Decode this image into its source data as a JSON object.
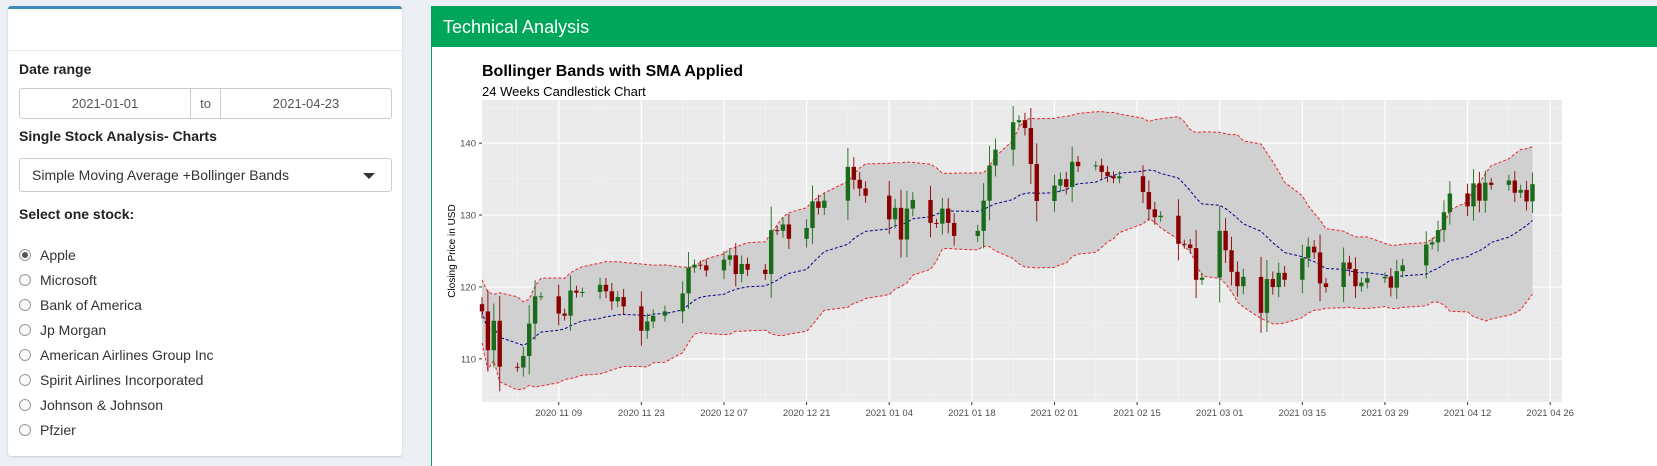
{
  "sidebar": {
    "date_range": {
      "label": "Date range",
      "start": "2021-01-01",
      "sep": "to",
      "end": "2021-04-23"
    },
    "chart_select": {
      "label": "Single Stock Analysis- Charts",
      "value": "Simple Moving Average +Bollinger Bands"
    },
    "stock_select": {
      "label": "Select one stock:",
      "options": [
        "Apple",
        "Microsoft",
        "Bank of America",
        "Jp Morgan",
        "American Airlines Group Inc",
        "Spirit Airlines Incorporated",
        "Johnson & Johnson",
        "Pfzier"
      ],
      "selected": "Apple"
    }
  },
  "main": {
    "header": "Technical Analysis"
  },
  "colors": {
    "accent": "#00a65a",
    "panel_top": "#3c8dbc",
    "up": "#1a6b1a",
    "down": "#8b0000",
    "band": "#e8262b",
    "sma": "#00008b"
  },
  "chart_data": {
    "type": "candlestick",
    "title": "Bollinger Bands with SMA Applied",
    "subtitle": "24 Weeks Candlestick Chart",
    "ylabel": "Closing Price in USD",
    "xlabel": "",
    "ylim": [
      104,
      146
    ],
    "yticks": [
      110,
      120,
      130,
      140
    ],
    "x_range": [
      "2020-10-27",
      "2021-04-28"
    ],
    "xticks": [
      "2020 11 09",
      "2020 11 23",
      "2020 12 07",
      "2020 12 21",
      "2021 01 04",
      "2021 01 18",
      "2021 02 01",
      "2021 02 15",
      "2021 03 01",
      "2021 03 15",
      "2021 03 29",
      "2021 04 12",
      "2021 04 26"
    ],
    "closes": [
      [
        "2020-10-27",
        116.6
      ],
      [
        "2020-10-28",
        111.2
      ],
      [
        "2020-10-29",
        115.3
      ],
      [
        "2020-10-30",
        108.9
      ],
      [
        "2020-11-02",
        108.8
      ],
      [
        "2020-11-03",
        110.4
      ],
      [
        "2020-11-04",
        114.9
      ],
      [
        "2020-11-05",
        118.7
      ],
      [
        "2020-11-06",
        118.7
      ],
      [
        "2020-11-09",
        116.3
      ],
      [
        "2020-11-10",
        116.0
      ],
      [
        "2020-11-11",
        119.5
      ],
      [
        "2020-11-12",
        119.2
      ],
      [
        "2020-11-13",
        119.3
      ],
      [
        "2020-11-16",
        120.3
      ],
      [
        "2020-11-17",
        119.4
      ],
      [
        "2020-11-18",
        118.0
      ],
      [
        "2020-11-19",
        118.6
      ],
      [
        "2020-11-20",
        117.3
      ],
      [
        "2020-11-23",
        113.9
      ],
      [
        "2020-11-24",
        115.2
      ],
      [
        "2020-11-25",
        116.0
      ],
      [
        "2020-11-27",
        116.6
      ],
      [
        "2020-11-30",
        119.1
      ],
      [
        "2020-12-01",
        122.7
      ],
      [
        "2020-12-02",
        123.1
      ],
      [
        "2020-12-03",
        123.0
      ],
      [
        "2020-12-04",
        122.3
      ],
      [
        "2020-12-07",
        123.8
      ],
      [
        "2020-12-08",
        124.4
      ],
      [
        "2020-12-09",
        121.8
      ],
      [
        "2020-12-10",
        123.2
      ],
      [
        "2020-12-11",
        122.4
      ],
      [
        "2020-12-14",
        121.8
      ],
      [
        "2020-12-15",
        127.9
      ],
      [
        "2020-12-16",
        127.8
      ],
      [
        "2020-12-17",
        128.7
      ],
      [
        "2020-12-18",
        126.7
      ],
      [
        "2020-12-21",
        128.2
      ],
      [
        "2020-12-22",
        131.9
      ],
      [
        "2020-12-23",
        131.0
      ],
      [
        "2020-12-24",
        132.0
      ],
      [
        "2020-12-28",
        136.7
      ],
      [
        "2020-12-29",
        134.9
      ],
      [
        "2020-12-30",
        133.7
      ],
      [
        "2020-12-31",
        132.7
      ],
      [
        "2021-01-04",
        129.4
      ],
      [
        "2021-01-05",
        131.0
      ],
      [
        "2021-01-06",
        126.6
      ],
      [
        "2021-01-07",
        130.9
      ],
      [
        "2021-01-08",
        132.1
      ],
      [
        "2021-01-11",
        128.9
      ],
      [
        "2021-01-12",
        128.8
      ],
      [
        "2021-01-13",
        130.9
      ],
      [
        "2021-01-14",
        128.9
      ],
      [
        "2021-01-15",
        127.1
      ],
      [
        "2021-01-19",
        127.8
      ],
      [
        "2021-01-20",
        132.0
      ],
      [
        "2021-01-21",
        136.9
      ],
      [
        "2021-01-22",
        139.1
      ],
      [
        "2021-01-25",
        142.9
      ],
      [
        "2021-01-26",
        143.2
      ],
      [
        "2021-01-27",
        142.1
      ],
      [
        "2021-01-28",
        137.1
      ],
      [
        "2021-01-29",
        131.96
      ],
      [
        "2021-02-01",
        134.1
      ],
      [
        "2021-02-02",
        134.99
      ],
      [
        "2021-02-03",
        133.9
      ],
      [
        "2021-02-04",
        137.4
      ],
      [
        "2021-02-05",
        136.8
      ],
      [
        "2021-02-08",
        136.9
      ],
      [
        "2021-02-09",
        136.0
      ],
      [
        "2021-02-10",
        135.4
      ],
      [
        "2021-02-11",
        135.1
      ],
      [
        "2021-02-12",
        135.4
      ],
      [
        "2021-02-16",
        133.2
      ],
      [
        "2021-02-17",
        130.8
      ],
      [
        "2021-02-18",
        129.7
      ],
      [
        "2021-02-19",
        129.9
      ],
      [
        "2021-02-22",
        126.0
      ],
      [
        "2021-02-23",
        125.9
      ],
      [
        "2021-02-24",
        125.4
      ],
      [
        "2021-02-25",
        120.99
      ],
      [
        "2021-02-26",
        121.3
      ],
      [
        "2021-03-01",
        127.8
      ],
      [
        "2021-03-02",
        125.1
      ],
      [
        "2021-03-03",
        122.1
      ],
      [
        "2021-03-04",
        120.1
      ],
      [
        "2021-03-05",
        121.4
      ],
      [
        "2021-03-08",
        116.4
      ],
      [
        "2021-03-09",
        121.1
      ],
      [
        "2021-03-10",
        119.98
      ],
      [
        "2021-03-11",
        121.96
      ],
      [
        "2021-03-12",
        121.0
      ],
      [
        "2021-03-15",
        123.99
      ],
      [
        "2021-03-16",
        125.6
      ],
      [
        "2021-03-17",
        124.8
      ],
      [
        "2021-03-18",
        120.5
      ],
      [
        "2021-03-19",
        119.99
      ],
      [
        "2021-03-22",
        123.4
      ],
      [
        "2021-03-23",
        122.5
      ],
      [
        "2021-03-24",
        120.1
      ],
      [
        "2021-03-25",
        120.6
      ],
      [
        "2021-03-26",
        121.2
      ],
      [
        "2021-03-29",
        121.4
      ],
      [
        "2021-03-30",
        119.9
      ],
      [
        "2021-03-31",
        122.2
      ],
      [
        "2021-04-01",
        123.0
      ],
      [
        "2021-04-05",
        125.9
      ],
      [
        "2021-04-06",
        126.2
      ],
      [
        "2021-04-07",
        127.9
      ],
      [
        "2021-04-08",
        130.4
      ],
      [
        "2021-04-09",
        133.0
      ],
      [
        "2021-04-12",
        131.2
      ],
      [
        "2021-04-13",
        134.4
      ],
      [
        "2021-04-14",
        132.0
      ],
      [
        "2021-04-15",
        134.5
      ],
      [
        "2021-04-16",
        134.2
      ],
      [
        "2021-04-19",
        134.8
      ],
      [
        "2021-04-20",
        133.1
      ],
      [
        "2021-04-21",
        133.5
      ],
      [
        "2021-04-22",
        131.9
      ],
      [
        "2021-04-23",
        134.3
      ]
    ],
    "series": [
      {
        "role": "candles",
        "style": "candlestick"
      },
      {
        "role": "sma",
        "style": "dashed",
        "color": "#00008b"
      },
      {
        "role": "bollinger_upper",
        "style": "dashed",
        "color": "#e8262b"
      },
      {
        "role": "bollinger_lower",
        "style": "dashed",
        "color": "#e8262b"
      }
    ],
    "grid": true
  }
}
